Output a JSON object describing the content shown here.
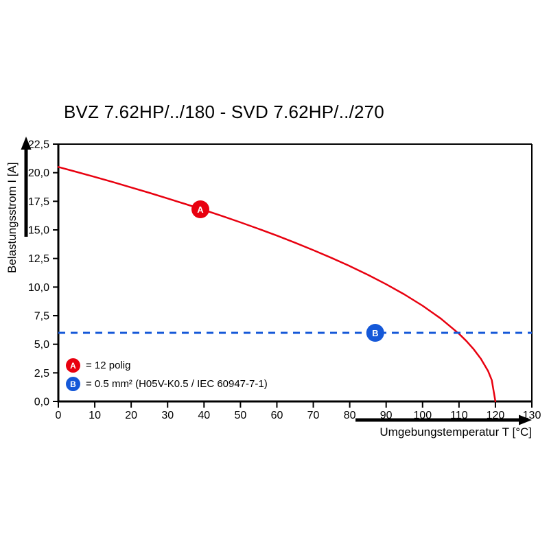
{
  "chart_data": {
    "type": "line",
    "title": "BVZ 7.62HP/../180 - SVD 7.62HP/../270",
    "xlabel": "Umgebungstemperatur T [°C]",
    "ylabel": "Belastungsstrom I [A]",
    "xlim": [
      0,
      130
    ],
    "ylim": [
      0,
      22.5
    ],
    "grid": false,
    "x_tick_values": [
      0,
      10,
      20,
      30,
      40,
      50,
      60,
      70,
      80,
      90,
      100,
      110,
      120,
      130
    ],
    "x_tick_labels": [
      "0",
      "10",
      "20",
      "30",
      "40",
      "50",
      "60",
      "70",
      "80",
      "90",
      "100",
      "110",
      "120",
      "130"
    ],
    "y_tick_values": [
      0,
      2.5,
      5,
      7.5,
      10,
      12.5,
      15,
      17.5,
      20,
      22.5
    ],
    "y_tick_labels": [
      "0,0",
      "2,5",
      "5,0",
      "7,5",
      "10,0",
      "12,5",
      "15,0",
      "17,5",
      "20,0",
      "22,5"
    ],
    "series": [
      {
        "name": "A = 12 polig",
        "kind": "curve",
        "color": "#e8000f",
        "style": "solid",
        "x": [
          0,
          5,
          10,
          15,
          20,
          25,
          30,
          35,
          40,
          45,
          50,
          55,
          60,
          65,
          70,
          75,
          80,
          85,
          90,
          95,
          100,
          105,
          110,
          112,
          114,
          116,
          118,
          119,
          120
        ],
        "y": [
          20.5,
          20.07,
          19.63,
          19.18,
          18.71,
          18.24,
          17.75,
          17.25,
          16.74,
          16.21,
          15.66,
          15.09,
          14.5,
          13.88,
          13.23,
          12.55,
          11.84,
          11.07,
          10.25,
          9.36,
          8.37,
          7.25,
          5.92,
          5.29,
          4.58,
          3.74,
          2.65,
          1.87,
          0
        ]
      },
      {
        "name": "B = 0.5 mm² (H05V-K0.5 / IEC 60947-7-1)",
        "kind": "hline",
        "color": "#1558d8",
        "style": "dashed",
        "y": 6.0
      }
    ],
    "markers": [
      {
        "label": "A",
        "x": 39,
        "y": 16.8,
        "color": "#e8000f"
      },
      {
        "label": "B",
        "x": 87,
        "y": 6.0,
        "color": "#1558d8"
      }
    ]
  },
  "legend": [
    {
      "id": "A",
      "text": "= 12 polig",
      "color": "#e8000f"
    },
    {
      "id": "B",
      "text": "= 0.5 mm² (H05V-K0.5 / IEC 60947-7-1)",
      "color": "#1558d8"
    }
  ]
}
